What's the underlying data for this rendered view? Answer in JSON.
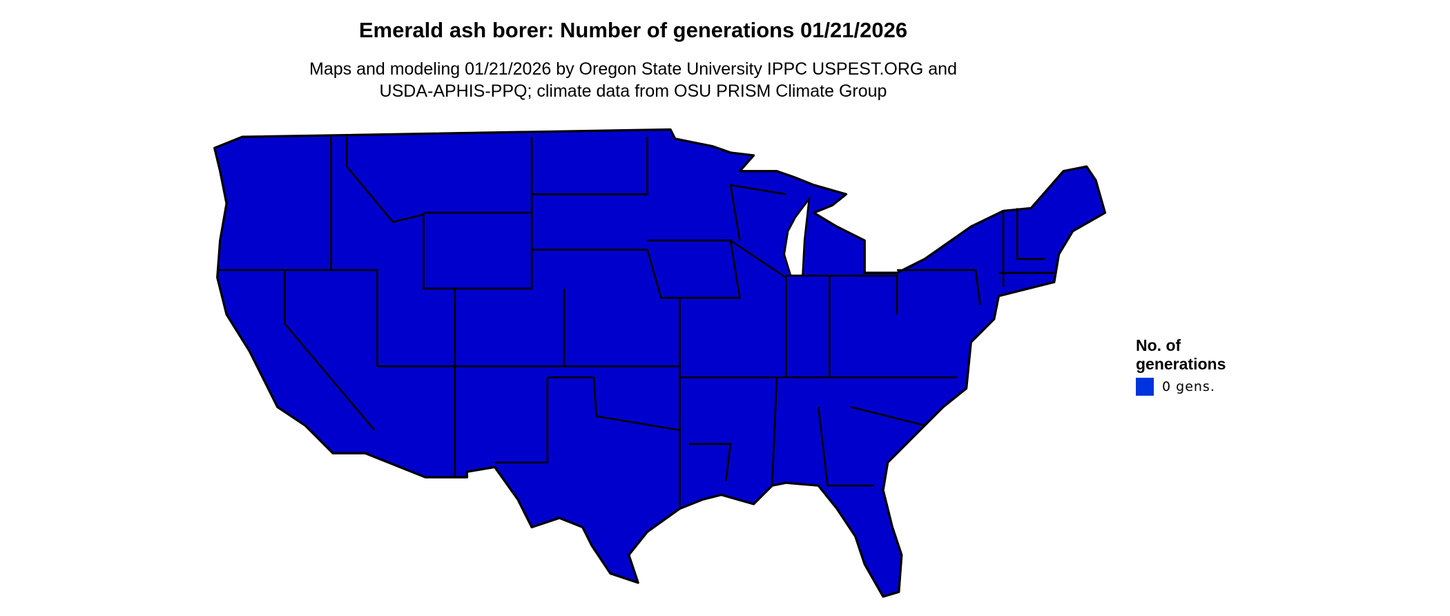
{
  "title": "Emerald ash borer: Number of generations 01/21/2026",
  "subtitle_line1": "Maps and modeling 01/21/2026 by Oregon State University IPPC USPEST.ORG and",
  "subtitle_line2": "USDA-APHIS-PPQ; climate data from OSU PRISM Climate Group",
  "map": {
    "region": "Contiguous United States",
    "fill_color": "#0000CC",
    "border_color": "#000000"
  },
  "legend": {
    "title_line1": "No. of",
    "title_line2": "generations",
    "items": [
      {
        "label": "0 gens.",
        "color": "#0033DD"
      }
    ]
  }
}
